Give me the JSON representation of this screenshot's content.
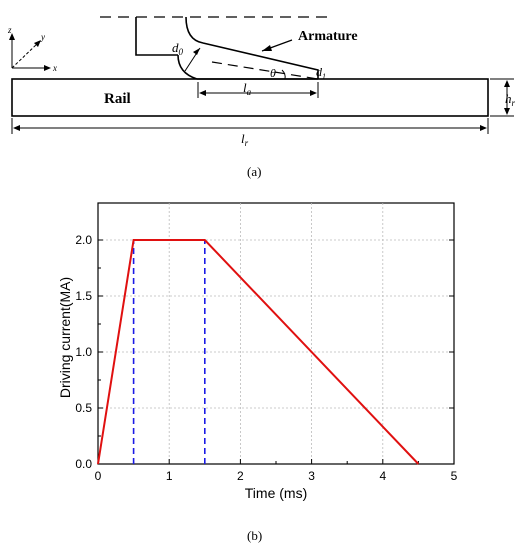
{
  "diagram": {
    "armature_label": "Armature",
    "rail_label": "Rail",
    "d0": "d",
    "d0_sub": "0",
    "d1": "d",
    "d1_sub": "1",
    "theta": "θ",
    "la": "l",
    "la_sub": "a",
    "hr": "h",
    "hr_sub": "r",
    "lr": "l",
    "lr_sub": "r",
    "axis_z": "z",
    "axis_y": "y",
    "axis_x": "x"
  },
  "captions": {
    "a": "(a)",
    "b": "(b)"
  },
  "chart_data": {
    "type": "line",
    "xlabel": "Time (ms)",
    "ylabel": "Driving current(MA)",
    "xlim": [
      0,
      5
    ],
    "ylim": [
      0,
      2.0
    ],
    "xticks": [
      "0",
      "1",
      "2",
      "3",
      "4",
      "5"
    ],
    "yticks": [
      "0.0",
      "0.5",
      "1.0",
      "1.5",
      "2.0"
    ],
    "grid": true,
    "series": [
      {
        "x": [
          0,
          0.5,
          1.5,
          4.5
        ],
        "y": [
          0,
          2.0,
          2.0,
          0
        ],
        "color": "#e01010",
        "style": "solid"
      }
    ],
    "markers": [
      {
        "x": 0.5,
        "y": 2.0,
        "color": "#1a1ae6",
        "style": "dashed"
      },
      {
        "x": 1.5,
        "y": 2.0,
        "color": "#1a1ae6",
        "style": "dashed"
      }
    ]
  }
}
